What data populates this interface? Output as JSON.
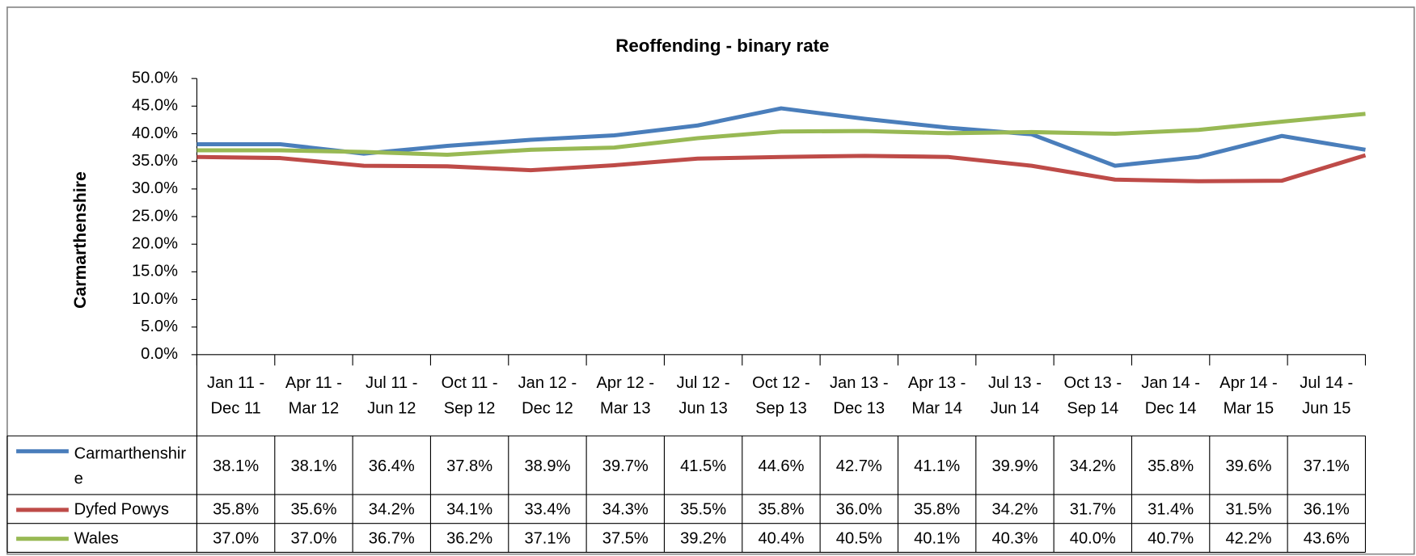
{
  "chart_data": {
    "type": "line",
    "title": "Reoffending - binary rate",
    "y_label": "Carmarthenshire",
    "categories": [
      "Jan 11 - Dec 11",
      "Apr 11 - Mar 12",
      "Jul 11 - Jun 12",
      "Oct 11 - Sep 12",
      "Jan 12 - Dec 12",
      "Apr 12 - Mar 13",
      "Jul 12 - Jun 13",
      "Oct 12 - Sep 13",
      "Jan 13 - Dec 13",
      "Apr 13 - Mar 14",
      "Jul 13 - Jun 14",
      "Oct 13 - Sep 14",
      "Jan 14 - Dec 14",
      "Apr 14 - Mar 15",
      "Jul 14 - Jun 15"
    ],
    "series": [
      {
        "name": "Carmarthenshire",
        "color": "#4a7ebb",
        "values": [
          38.1,
          38.1,
          36.4,
          37.8,
          38.9,
          39.7,
          41.5,
          44.6,
          42.7,
          41.1,
          39.9,
          34.2,
          35.8,
          39.6,
          37.1
        ],
        "value_labels": [
          "38.1%",
          "38.1%",
          "36.4%",
          "37.8%",
          "38.9%",
          "39.7%",
          "41.5%",
          "44.6%",
          "42.7%",
          "41.1%",
          "39.9%",
          "34.2%",
          "35.8%",
          "39.6%",
          "37.1%"
        ]
      },
      {
        "name": "Dyfed Powys",
        "color": "#be4b48",
        "values": [
          35.8,
          35.6,
          34.2,
          34.1,
          33.4,
          34.3,
          35.5,
          35.8,
          36.0,
          35.8,
          34.2,
          31.7,
          31.4,
          31.5,
          36.1
        ],
        "value_labels": [
          "35.8%",
          "35.6%",
          "34.2%",
          "34.1%",
          "33.4%",
          "34.3%",
          "35.5%",
          "35.8%",
          "36.0%",
          "35.8%",
          "34.2%",
          "31.7%",
          "31.4%",
          "31.5%",
          "36.1%"
        ]
      },
      {
        "name": "Wales",
        "color": "#98b954",
        "values": [
          37.0,
          37.0,
          36.7,
          36.2,
          37.1,
          37.5,
          39.2,
          40.4,
          40.5,
          40.1,
          40.3,
          40.0,
          40.7,
          42.2,
          43.6
        ],
        "value_labels": [
          "37.0%",
          "37.0%",
          "36.7%",
          "36.2%",
          "37.1%",
          "37.5%",
          "39.2%",
          "40.4%",
          "40.5%",
          "40.1%",
          "40.3%",
          "40.0%",
          "40.7%",
          "42.2%",
          "43.6%"
        ]
      }
    ],
    "ylim": [
      0,
      50
    ],
    "yticks": [
      {
        "value": 0,
        "label": "0.0%"
      },
      {
        "value": 5,
        "label": "5.0%"
      },
      {
        "value": 10,
        "label": "10.0%"
      },
      {
        "value": 15,
        "label": "15.0%"
      },
      {
        "value": 20,
        "label": "20.0%"
      },
      {
        "value": 25,
        "label": "25.0%"
      },
      {
        "value": 30,
        "label": "30.0%"
      },
      {
        "value": 35,
        "label": "35.0%"
      },
      {
        "value": 40,
        "label": "40.0%"
      },
      {
        "value": 45,
        "label": "45.0%"
      },
      {
        "value": 50,
        "label": "50.0%"
      }
    ],
    "grid": false
  }
}
